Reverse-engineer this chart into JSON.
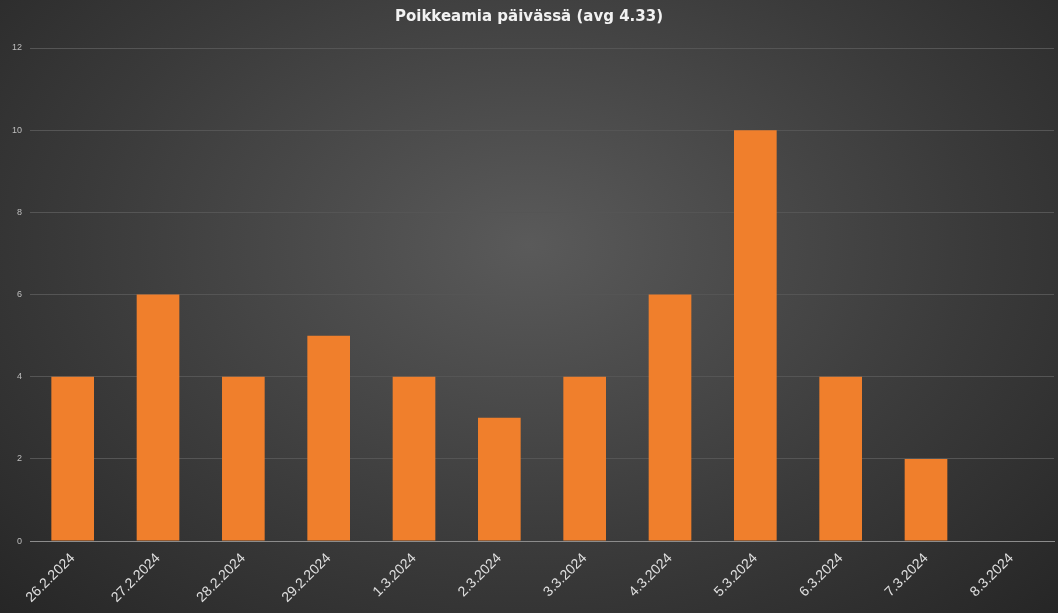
{
  "chart_data": {
    "type": "bar",
    "title": "Poikkeamia päivässä (avg 4.33)",
    "categories": [
      "26.2.2024",
      "27.2.2024",
      "28.2.2024",
      "29.2.2024",
      "1.3.2024",
      "2.3.2024",
      "3.3.2024",
      "4.3.2024",
      "5.3.2024",
      "6.3.2024",
      "7.3.2024",
      "8.3.2024"
    ],
    "values": [
      4,
      6,
      4,
      5,
      4,
      3,
      4,
      6,
      10,
      4,
      2,
      0
    ],
    "color": "#f07f2c",
    "ylim": [
      0,
      12
    ],
    "yticks": [
      0,
      2,
      4,
      6,
      8,
      10,
      12
    ],
    "grid": "y",
    "legend": false
  }
}
